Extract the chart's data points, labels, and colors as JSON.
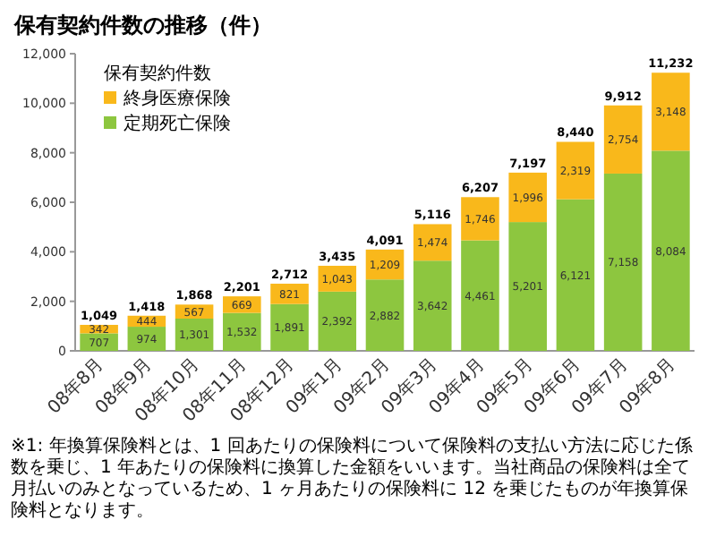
{
  "chart_data": {
    "type": "bar",
    "title": "保有契約件数の推移（件）",
    "legend_title": "保有契約件数",
    "stacked": true,
    "legend": "top left",
    "grid": false,
    "categories": [
      "08年8月",
      "08年9月",
      "08年10月",
      "08年11月",
      "08年12月",
      "09年1月",
      "09年2月",
      "09年3月",
      "09年4月",
      "09年5月",
      "09年6月",
      "09年7月",
      "09年8月"
    ],
    "series": [
      {
        "name": "定期死亡保険",
        "color": "#8dc63f",
        "values": [
          707,
          974,
          1301,
          1532,
          1891,
          2392,
          2882,
          3642,
          4461,
          5201,
          6121,
          7158,
          8084
        ],
        "value_labels": [
          "707",
          "974",
          "1,301",
          "1,532",
          "1,891",
          "2,392",
          "2,882",
          "3,642",
          "4,461",
          "5,201",
          "6,121",
          "7,158",
          "8,084"
        ]
      },
      {
        "name": "終身医療保険",
        "color": "#f9b81b",
        "values": [
          342,
          444,
          567,
          669,
          821,
          1043,
          1209,
          1474,
          1746,
          1996,
          2319,
          2754,
          3148
        ],
        "value_labels": [
          "342",
          "444",
          "567",
          "669",
          "821",
          "1,043",
          "1,209",
          "1,474",
          "1,746",
          "1,996",
          "2,319",
          "2,754",
          "3,148"
        ]
      }
    ],
    "totals": [
      "1,049",
      "1,418",
      "1,868",
      "2,201",
      "2,712",
      "3,435",
      "4,091",
      "5,116",
      "6,207",
      "7,197",
      "8,440",
      "9,912",
      "11,232"
    ],
    "ylim": [
      0,
      12000
    ],
    "yticks": [
      0,
      {
        "value": 2000,
        "label": "2,000"
      },
      {
        "value": 4000,
        "label": "4,000"
      },
      {
        "value": 6000,
        "label": "6,000"
      },
      {
        "value": 8000,
        "label": "8,000"
      },
      {
        "value": 10000,
        "label": "10,000"
      },
      {
        "value": 12000,
        "label": "12,000"
      }
    ],
    "annotations": [
      "※1: 年換算保険料とは、1 回あたりの保険料について保険料の支払い方法に応じた係数を乗じ、1 年あたりの保険料に換算した金額をいいます。当社商品の保険料は全て月払いのみとなっているため、1 ヶ月あたりの保険料に 12 を乗じたものが年換算保険料となります。"
    ]
  }
}
